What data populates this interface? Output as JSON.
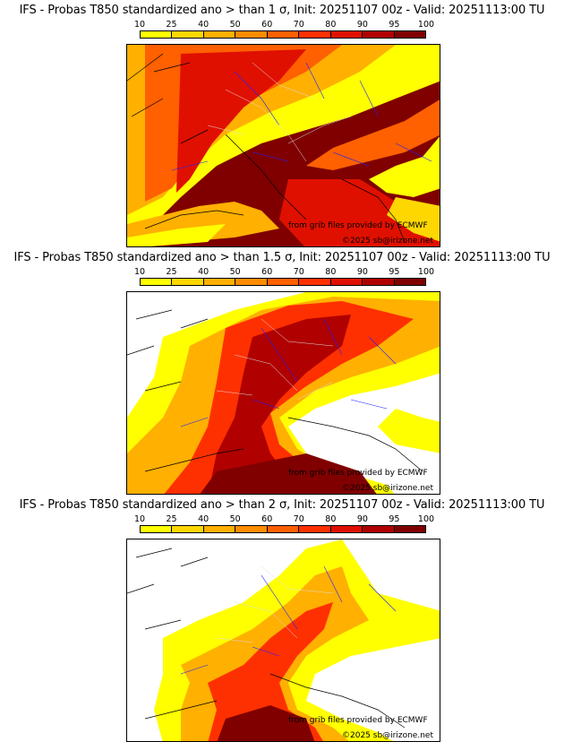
{
  "colorbar": {
    "labels": [
      "10",
      "25",
      "40",
      "50",
      "60",
      "70",
      "80",
      "90",
      "95",
      "100"
    ],
    "colors": [
      "#ffff00",
      "#ffd700",
      "#ffb000",
      "#ff8c00",
      "#ff6000",
      "#ff3000",
      "#e01000",
      "#b00000",
      "#800000"
    ]
  },
  "map_colors": {
    "land": "#ffffff",
    "sea": "#ffffff",
    "coast": "#000000",
    "rivers": "#2020ff",
    "borders": "#dddddd"
  },
  "panels": [
    {
      "title": "IFS - Probas T850  standardized ano > than 1 σ, Init: 20251107 00z - Valid: 20251113:00 TU",
      "credit_grib": "from grib files provided by ECMWF",
      "credit_site": "©2025 sb@irizone.net"
    },
    {
      "title": "IFS - Probas T850  standardized ano > than 1.5 σ, Init: 20251107 00z - Valid: 20251113:00 TU",
      "credit_grib": "from grib files provided by ECMWF",
      "credit_site": "©2025 sb@irizone.net"
    },
    {
      "title": "IFS - Probas T850  standardized ano > than 2 σ, Init: 20251107 00z - Valid: 20251113:00 TU",
      "credit_grib": "from grib files provided by ECMWF",
      "credit_site": "©2025 sb@irizone.net"
    }
  ]
}
